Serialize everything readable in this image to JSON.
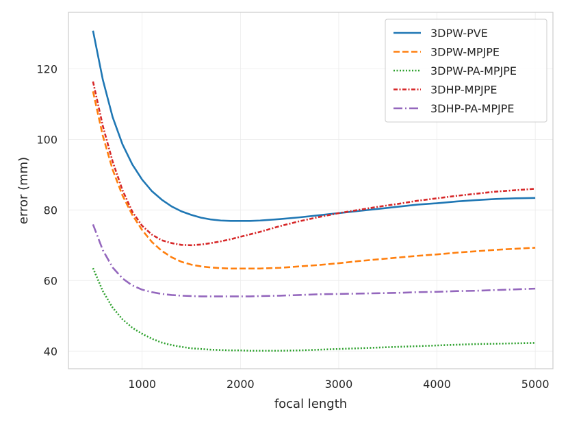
{
  "chart_data": {
    "type": "line",
    "xlabel": "focal length",
    "ylabel": "error (mm)",
    "xlim": [
      250,
      5180
    ],
    "ylim": [
      35,
      136
    ],
    "xticks": [
      1000,
      2000,
      3000,
      4000,
      5000
    ],
    "yticks": [
      40,
      60,
      80,
      100,
      120
    ],
    "grid": true,
    "legend_position": "top-right",
    "x": [
      500,
      600,
      700,
      800,
      900,
      1000,
      1100,
      1200,
      1300,
      1400,
      1500,
      1600,
      1700,
      1800,
      1900,
      2000,
      2100,
      2200,
      2400,
      2600,
      2800,
      3000,
      3200,
      3400,
      3600,
      3800,
      4000,
      4200,
      4400,
      4600,
      4800,
      5000
    ],
    "series": [
      {
        "name": "3DPW-PVE",
        "color": "#1f77b4",
        "dash": "solid",
        "values": [
          130.8,
          116.9,
          106.3,
          98.6,
          92.9,
          88.6,
          85.3,
          82.9,
          81.0,
          79.6,
          78.6,
          77.8,
          77.3,
          77.0,
          76.9,
          76.9,
          76.9,
          77.0,
          77.4,
          77.9,
          78.5,
          79.1,
          79.7,
          80.3,
          80.9,
          81.5,
          81.9,
          82.4,
          82.8,
          83.1,
          83.3,
          83.4
        ]
      },
      {
        "name": "3DPW-MPJPE",
        "color": "#ff7f0e",
        "dash": "dashed",
        "values": [
          113.6,
          101.0,
          91.4,
          84.1,
          78.6,
          74.3,
          70.9,
          68.4,
          66.6,
          65.3,
          64.5,
          64.0,
          63.7,
          63.5,
          63.4,
          63.4,
          63.4,
          63.4,
          63.6,
          64.0,
          64.4,
          64.9,
          65.5,
          66.0,
          66.5,
          67.0,
          67.4,
          67.9,
          68.3,
          68.7,
          69.0,
          69.3
        ]
      },
      {
        "name": "3DPW-PA-MPJPE",
        "color": "#2ca02c",
        "dash": "dotted",
        "values": [
          63.5,
          57.0,
          52.3,
          49.0,
          46.6,
          44.9,
          43.5,
          42.4,
          41.7,
          41.2,
          40.8,
          40.6,
          40.4,
          40.3,
          40.2,
          40.2,
          40.1,
          40.1,
          40.1,
          40.2,
          40.4,
          40.6,
          40.8,
          41.0,
          41.2,
          41.4,
          41.6,
          41.8,
          42.0,
          42.1,
          42.2,
          42.3
        ]
      },
      {
        "name": "3DHP-MPJPE",
        "color": "#d62728",
        "dash": "dashdot2",
        "values": [
          116.4,
          103.8,
          93.7,
          85.6,
          79.5,
          75.5,
          73.0,
          71.4,
          70.6,
          70.1,
          70.0,
          70.2,
          70.6,
          71.1,
          71.7,
          72.4,
          73.1,
          73.8,
          75.4,
          76.8,
          78.0,
          79.1,
          80.0,
          80.9,
          81.7,
          82.6,
          83.3,
          84.0,
          84.6,
          85.2,
          85.6,
          86.0
        ]
      },
      {
        "name": "3DHP-PA-MPJPE",
        "color": "#9467bd",
        "dash": "dashdot",
        "values": [
          75.9,
          68.6,
          63.7,
          60.6,
          58.6,
          57.4,
          56.7,
          56.2,
          55.9,
          55.7,
          55.6,
          55.5,
          55.5,
          55.5,
          55.5,
          55.5,
          55.5,
          55.6,
          55.7,
          55.9,
          56.1,
          56.2,
          56.3,
          56.4,
          56.5,
          56.7,
          56.8,
          57.0,
          57.1,
          57.3,
          57.5,
          57.7
        ]
      }
    ]
  }
}
